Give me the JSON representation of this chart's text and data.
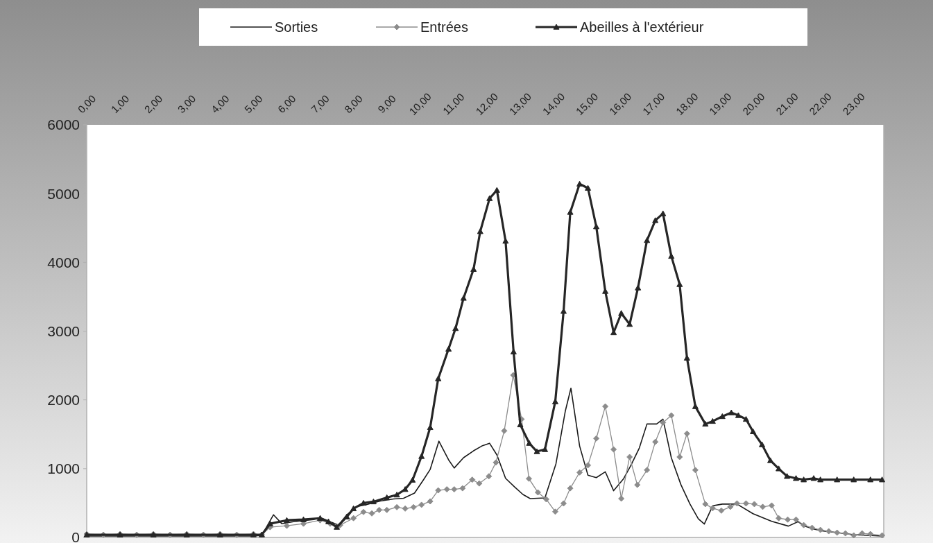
{
  "chart_data": {
    "type": "line",
    "xlim": [
      0,
      23.9
    ],
    "xticks": [
      {
        "value": 0,
        "label": "0,00"
      },
      {
        "value": 1,
        "label": "1,00"
      },
      {
        "value": 2,
        "label": "2,00"
      },
      {
        "value": 3,
        "label": "3,00"
      },
      {
        "value": 4,
        "label": "4,00"
      },
      {
        "value": 5,
        "label": "5,00"
      },
      {
        "value": 6,
        "label": "6,00"
      },
      {
        "value": 7,
        "label": "7,00"
      },
      {
        "value": 8,
        "label": "8,00"
      },
      {
        "value": 9,
        "label": "9,00"
      },
      {
        "value": 10,
        "label": "10,00"
      },
      {
        "value": 11,
        "label": "11,00"
      },
      {
        "value": 12,
        "label": "12,00"
      },
      {
        "value": 13,
        "label": "13,00"
      },
      {
        "value": 14,
        "label": "14,00"
      },
      {
        "value": 15,
        "label": "15,00"
      },
      {
        "value": 16,
        "label": "16,00"
      },
      {
        "value": 17,
        "label": "17,00"
      },
      {
        "value": 18,
        "label": "18,00"
      },
      {
        "value": 19,
        "label": "19,00"
      },
      {
        "value": 20,
        "label": "20,00"
      },
      {
        "value": 21,
        "label": "21,00"
      },
      {
        "value": 22,
        "label": "22,00"
      },
      {
        "value": 23,
        "label": "23,00"
      }
    ],
    "ylim": [
      0,
      6000
    ],
    "yticks": [
      0,
      1000,
      2000,
      3000,
      4000,
      5000,
      6000
    ],
    "grid": false,
    "legend": "top",
    "line_style": "solid",
    "series": [
      {
        "name": "Sorties",
        "color": "#1a1a1a",
        "marker": "none",
        "x": [
          0,
          1,
          2,
          3,
          4,
          5,
          5.25,
          5.6,
          5.85,
          6.2,
          6.8,
          7.0,
          7.3,
          7.55,
          7.8,
          8.1,
          8.4,
          8.8,
          9.2,
          9.5,
          9.83,
          10.1,
          10.3,
          10.56,
          10.85,
          11.02,
          11.3,
          11.6,
          11.85,
          12.08,
          12.3,
          12.56,
          12.83,
          13.08,
          13.3,
          13.74,
          14.07,
          14.35,
          14.52,
          14.78,
          15.03,
          15.28,
          15.55,
          15.8,
          16.1,
          16.32,
          16.57,
          16.8,
          17.09,
          17.28,
          17.53,
          17.82,
          18.09,
          18.34,
          18.52,
          18.77,
          19.06,
          19.5,
          19.98,
          20.54,
          21.04,
          21.33,
          21.5,
          21.75,
          22,
          22.5,
          23,
          23.85
        ],
        "values": [
          20,
          20,
          20,
          20,
          20,
          20,
          30,
          330,
          200,
          230,
          260,
          290,
          230,
          180,
          330,
          450,
          480,
          530,
          560,
          570,
          645,
          840,
          990,
          1400,
          1130,
          1010,
          1160,
          1260,
          1330,
          1370,
          1200,
          860,
          735,
          625,
          565,
          575,
          1070,
          1835,
          2170,
          1330,
          905,
          870,
          955,
          680,
          855,
          1050,
          1300,
          1650,
          1650,
          1720,
          1160,
          765,
          485,
          270,
          195,
          460,
          485,
          485,
          345,
          235,
          165,
          230,
          170,
          130,
          100,
          70,
          40,
          20
        ]
      },
      {
        "name": "Entrées",
        "color": "#8c8c8c",
        "marker": "diamond",
        "x": [
          0,
          0.5,
          1,
          1.5,
          2,
          2.5,
          3,
          3.5,
          4,
          4.5,
          5,
          5.25,
          5.5,
          6.0,
          6.5,
          7.0,
          7.3,
          7.6,
          8.0,
          8.3,
          8.55,
          8.77,
          9.0,
          9.3,
          9.55,
          9.8,
          10.04,
          10.3,
          10.54,
          10.8,
          11.02,
          11.27,
          11.56,
          11.77,
          12.06,
          12.27,
          12.52,
          12.79,
          13.04,
          13.26,
          13.53,
          13.78,
          14.05,
          14.3,
          14.5,
          14.78,
          15.03,
          15.28,
          15.55,
          15.8,
          16.03,
          16.28,
          16.51,
          16.8,
          17.05,
          17.28,
          17.53,
          17.78,
          18.0,
          18.25,
          18.55,
          18.77,
          19.03,
          19.3,
          19.5,
          19.77,
          20.02,
          20.27,
          20.54,
          20.75,
          21.02,
          21.27,
          21.5,
          21.75,
          22.0,
          22.25,
          22.5,
          22.75,
          23.0,
          23.25,
          23.5,
          23.85
        ],
        "values": [
          50,
          40,
          50,
          40,
          50,
          40,
          50,
          40,
          50,
          40,
          50,
          40,
          150,
          170,
          200,
          250,
          200,
          180,
          280,
          370,
          350,
          400,
          400,
          440,
          420,
          440,
          475,
          525,
          685,
          700,
          700,
          715,
          840,
          785,
          890,
          1090,
          1550,
          2360,
          1720,
          855,
          655,
          555,
          375,
          495,
          715,
          945,
          1050,
          1440,
          1905,
          1280,
          565,
          1170,
          765,
          980,
          1390,
          1670,
          1775,
          1170,
          1510,
          980,
          485,
          425,
          390,
          445,
          495,
          495,
          485,
          445,
          465,
          280,
          260,
          260,
          180,
          140,
          110,
          90,
          70,
          60,
          30,
          60,
          50,
          30
        ]
      },
      {
        "name": "Abeilles à l'extérieur",
        "color": "#262626",
        "marker": "triangle",
        "x": [
          0,
          1,
          2,
          3,
          4,
          5,
          5.25,
          5.5,
          6.0,
          6.5,
          7.0,
          7.25,
          7.5,
          7.8,
          8.0,
          8.3,
          8.6,
          9.0,
          9.3,
          9.55,
          9.77,
          10.04,
          10.3,
          10.54,
          10.85,
          11.06,
          11.3,
          11.6,
          11.8,
          12.08,
          12.3,
          12.56,
          12.8,
          13.0,
          13.27,
          13.5,
          13.74,
          14.05,
          14.3,
          14.5,
          14.78,
          15.03,
          15.28,
          15.55,
          15.8,
          16.03,
          16.28,
          16.53,
          16.8,
          17.05,
          17.28,
          17.53,
          17.78,
          18.0,
          18.25,
          18.55,
          18.77,
          19.06,
          19.33,
          19.54,
          19.77,
          19.98,
          20.25,
          20.5,
          20.75,
          21.0,
          21.27,
          21.5,
          21.8,
          22.0,
          22.5,
          23.0,
          23.5,
          23.85
        ],
        "values": [
          40,
          40,
          40,
          40,
          40,
          40,
          40,
          200,
          250,
          260,
          280,
          230,
          150,
          300,
          420,
          500,
          520,
          580,
          620,
          700,
          835,
          1180,
          1600,
          2310,
          2740,
          3040,
          3480,
          3900,
          4450,
          4930,
          5050,
          4310,
          2700,
          1640,
          1370,
          1250,
          1280,
          1975,
          3290,
          4730,
          5140,
          5080,
          4520,
          3580,
          2980,
          3260,
          3100,
          3630,
          4320,
          4610,
          4710,
          4090,
          3680,
          2610,
          1905,
          1650,
          1690,
          1760,
          1815,
          1775,
          1720,
          1540,
          1350,
          1120,
          1000,
          890,
          860,
          840,
          860,
          840,
          840,
          840,
          840,
          840
        ]
      }
    ]
  }
}
